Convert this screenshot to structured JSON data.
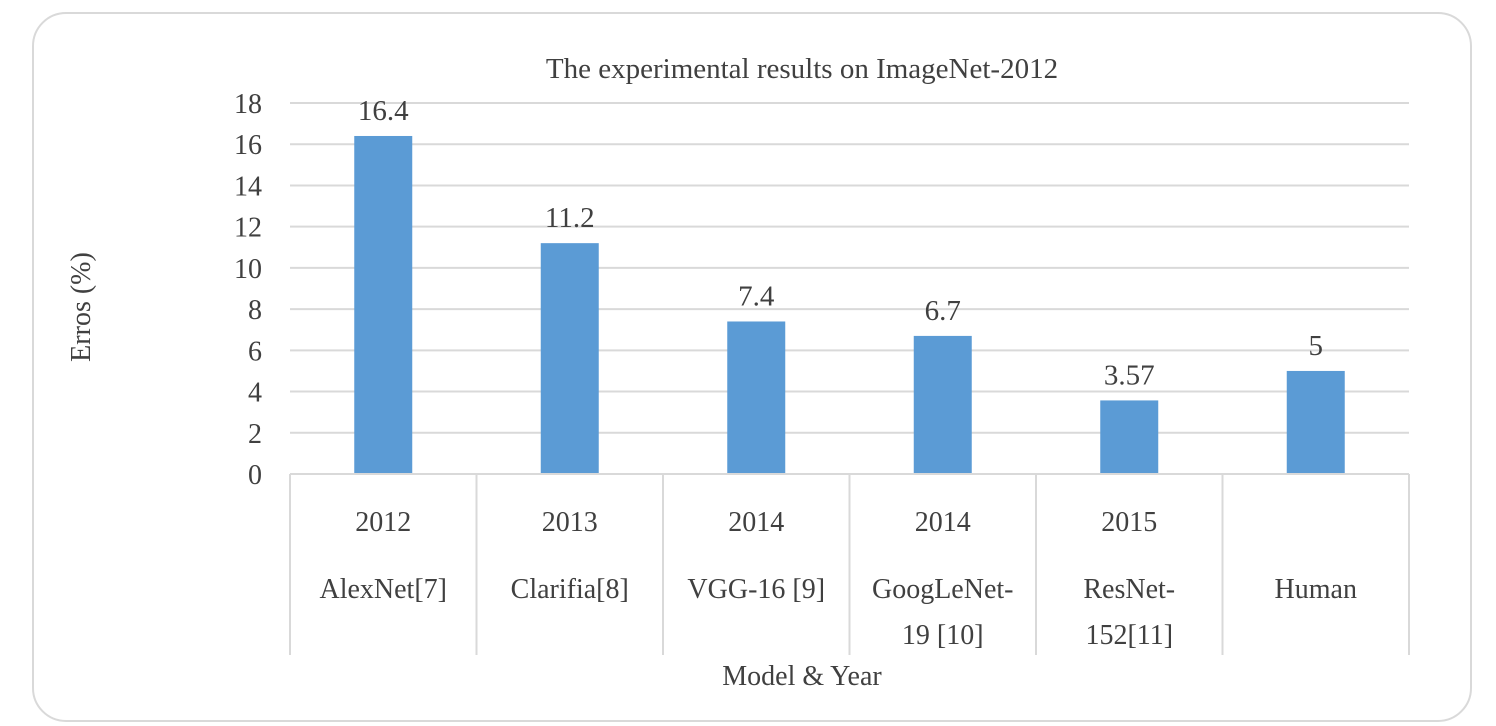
{
  "chart_data": {
    "type": "bar",
    "title": "The experimental results on ImageNet-2012",
    "xlabel": "Model & Year",
    "ylabel": "Erros (%)",
    "ylim": [
      0,
      18
    ],
    "yticks": [
      0,
      2,
      4,
      6,
      8,
      10,
      12,
      14,
      16,
      18
    ],
    "grid": true,
    "bar_color": "#5b9bd5",
    "categories": [
      {
        "year": "2012",
        "model": [
          "AlexNet[7]"
        ]
      },
      {
        "year": "2013",
        "model": [
          "Clarifia[8]"
        ]
      },
      {
        "year": "2014",
        "model": [
          "VGG-16 [9]"
        ]
      },
      {
        "year": "2014",
        "model": [
          "GoogLeNet-",
          "19 [10]"
        ]
      },
      {
        "year": "2015",
        "model": [
          "ResNet-",
          "152[11]"
        ]
      },
      {
        "year": "",
        "model": [
          "Human"
        ]
      }
    ],
    "values": [
      16.4,
      11.2,
      7.4,
      6.7,
      3.57,
      5
    ],
    "data_labels": [
      "16.4",
      "11.2",
      "7.4",
      "6.7",
      "3.57",
      "5"
    ]
  }
}
